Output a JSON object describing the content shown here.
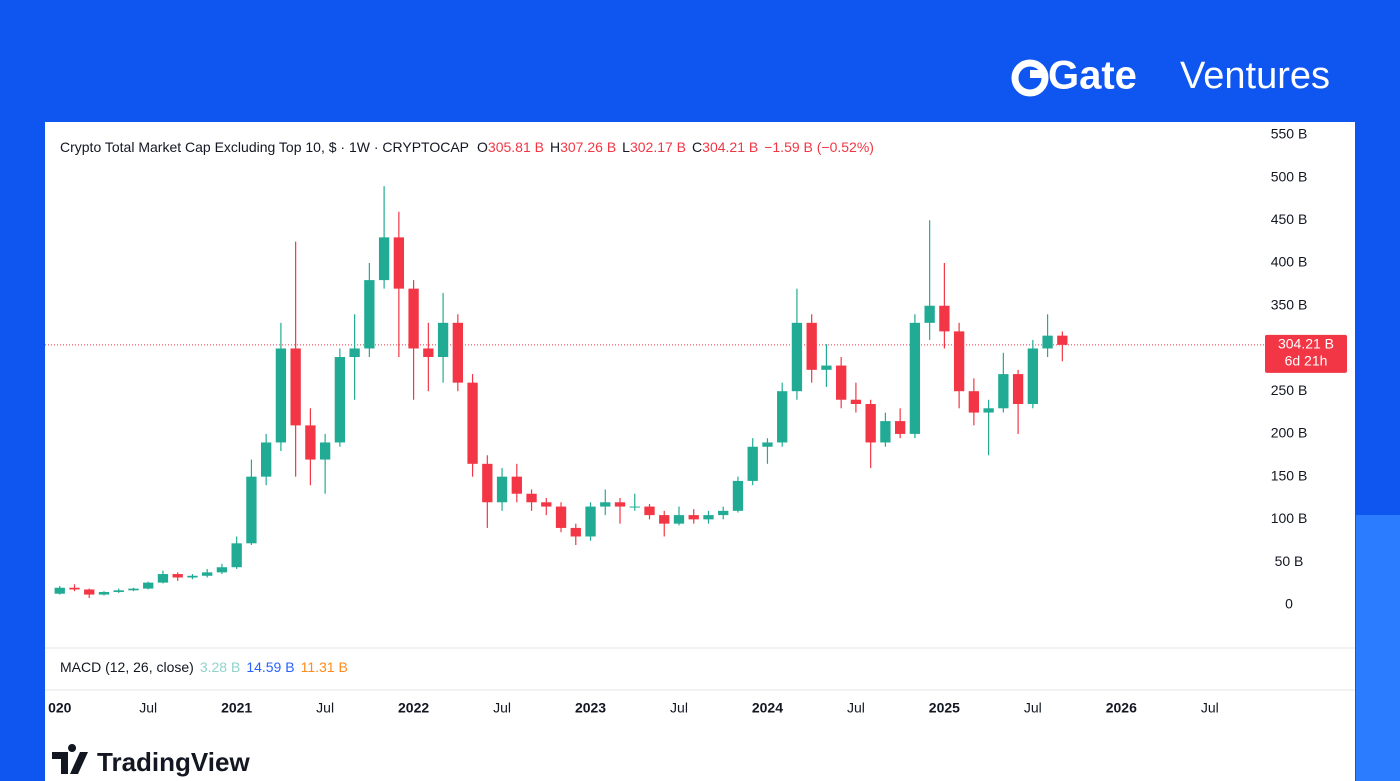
{
  "brand": {
    "name": "Gate",
    "suffix": "Ventures"
  },
  "watermark": "TradingView",
  "chart_data": {
    "type": "candlestick",
    "title": "Crypto Total Market Cap Excluding Top 10, $ · 1W · CRYPTOCAP",
    "ohlc_legend": [
      {
        "key": "O",
        "value": "305.81 B"
      },
      {
        "key": "H",
        "value": "307.26 B"
      },
      {
        "key": "L",
        "value": "302.17 B"
      },
      {
        "key": "C",
        "value": "304.21 B"
      }
    ],
    "change": "−1.59 B (−0.52%)",
    "up_color": "#22ab94",
    "down_color": "#f23645",
    "x": [
      "2020-01",
      "2020-02",
      "2020-03",
      "2020-04",
      "2020-05",
      "2020-06",
      "2020-07",
      "2020-08",
      "2020-09",
      "2020-10",
      "2020-11",
      "2020-12",
      "2021-01",
      "2021-02",
      "2021-03",
      "2021-04",
      "2021-05",
      "2021-06",
      "2021-07",
      "2021-08",
      "2021-09",
      "2021-10",
      "2021-11",
      "2021-12",
      "2022-01",
      "2022-02",
      "2022-03",
      "2022-04",
      "2022-05",
      "2022-06",
      "2022-07",
      "2022-08",
      "2022-09",
      "2022-10",
      "2022-11",
      "2022-12",
      "2023-01",
      "2023-02",
      "2023-03",
      "2023-04",
      "2023-05",
      "2023-06",
      "2023-07",
      "2023-08",
      "2023-09",
      "2023-10",
      "2023-11",
      "2023-12",
      "2024-01",
      "2024-02",
      "2024-03",
      "2024-04",
      "2024-05",
      "2024-06",
      "2024-07",
      "2024-08",
      "2024-09",
      "2024-10",
      "2024-11",
      "2024-12",
      "2025-01",
      "2025-02",
      "2025-03",
      "2025-04",
      "2025-05",
      "2025-06",
      "2025-07",
      "2025-08",
      "2025-09"
    ],
    "open": [
      13,
      20,
      18,
      12,
      15,
      17,
      19,
      26,
      36,
      32,
      34,
      38,
      44,
      72,
      150,
      190,
      300,
      210,
      170,
      190,
      290,
      300,
      380,
      430,
      370,
      300,
      290,
      330,
      260,
      165,
      120,
      150,
      130,
      120,
      115,
      90,
      80,
      115,
      120,
      115,
      115,
      105,
      95,
      105,
      100,
      105,
      110,
      145,
      185,
      190,
      250,
      330,
      275,
      280,
      240,
      235,
      190,
      215,
      200,
      330,
      350,
      320,
      250,
      225,
      230,
      270,
      235,
      300,
      315
    ],
    "high": [
      22,
      24,
      19,
      16,
      19,
      20,
      27,
      40,
      38,
      36,
      42,
      48,
      80,
      170,
      200,
      330,
      425,
      230,
      200,
      300,
      340,
      400,
      490,
      460,
      380,
      330,
      365,
      340,
      270,
      175,
      160,
      165,
      135,
      125,
      120,
      95,
      120,
      135,
      125,
      130,
      118,
      110,
      115,
      112,
      110,
      115,
      150,
      195,
      195,
      260,
      370,
      340,
      305,
      290,
      260,
      240,
      225,
      230,
      340,
      450,
      400,
      330,
      265,
      240,
      295,
      275,
      310,
      340,
      320
    ],
    "low": [
      12,
      16,
      8,
      11,
      14,
      16,
      18,
      25,
      28,
      30,
      32,
      36,
      42,
      70,
      140,
      180,
      150,
      140,
      130,
      185,
      240,
      290,
      370,
      290,
      240,
      250,
      260,
      250,
      150,
      90,
      110,
      120,
      110,
      105,
      85,
      70,
      75,
      105,
      95,
      110,
      100,
      80,
      93,
      95,
      95,
      100,
      108,
      140,
      165,
      185,
      240,
      260,
      255,
      230,
      225,
      160,
      185,
      195,
      195,
      310,
      300,
      230,
      210,
      175,
      225,
      200,
      230,
      290,
      285
    ],
    "close": [
      20,
      18,
      12,
      15,
      17,
      19,
      26,
      36,
      32,
      34,
      38,
      44,
      72,
      150,
      190,
      300,
      210,
      170,
      190,
      290,
      300,
      380,
      430,
      370,
      300,
      290,
      330,
      260,
      165,
      120,
      150,
      130,
      120,
      115,
      90,
      80,
      115,
      120,
      115,
      115,
      105,
      95,
      105,
      100,
      105,
      110,
      145,
      185,
      190,
      250,
      330,
      275,
      280,
      240,
      235,
      190,
      215,
      200,
      330,
      350,
      320,
      250,
      225,
      230,
      270,
      235,
      300,
      315,
      304.21
    ],
    "xlim": [
      "2019-12",
      "2026-10"
    ],
    "xticks": [
      {
        "value": "2020-01",
        "label": "020"
      },
      {
        "value": "2020-07",
        "label": "Jul"
      },
      {
        "value": "2021-01",
        "label": "2021"
      },
      {
        "value": "2021-07",
        "label": "Jul"
      },
      {
        "value": "2022-01",
        "label": "2022"
      },
      {
        "value": "2022-07",
        "label": "Jul"
      },
      {
        "value": "2023-01",
        "label": "2023"
      },
      {
        "value": "2023-07",
        "label": "Jul"
      },
      {
        "value": "2024-01",
        "label": "2024"
      },
      {
        "value": "2024-07",
        "label": "Jul"
      },
      {
        "value": "2025-01",
        "label": "2025"
      },
      {
        "value": "2025-07",
        "label": "Jul"
      },
      {
        "value": "2026-01",
        "label": "2026"
      },
      {
        "value": "2026-07",
        "label": "Jul"
      }
    ],
    "ylim": [
      -47,
      565
    ],
    "yticks": [
      0,
      {
        "value": 50,
        "label": "50 B"
      },
      {
        "value": 100,
        "label": "100 B"
      },
      {
        "value": 150,
        "label": "150 B"
      },
      {
        "value": 200,
        "label": "200 B"
      },
      {
        "value": 250,
        "label": "250 B"
      },
      {
        "value": 300,
        "label": "300 B"
      },
      {
        "value": 350,
        "label": "350 B"
      },
      {
        "value": 400,
        "label": "400 B"
      },
      {
        "value": 450,
        "label": "450 B"
      },
      {
        "value": 500,
        "label": "500 B"
      },
      {
        "value": 550,
        "label": "550 B"
      }
    ],
    "last_price": {
      "value": 304.21,
      "label": "304.21 B"
    },
    "countdown": "6d 21h",
    "macd": {
      "label": "MACD (12, 26, close)",
      "values": [
        {
          "text": "3.28 B",
          "color": "#8fd3cc"
        },
        {
          "text": "14.59 B",
          "color": "#2962ff"
        },
        {
          "text": "11.31 B",
          "color": "#ff8a1c"
        }
      ]
    }
  }
}
